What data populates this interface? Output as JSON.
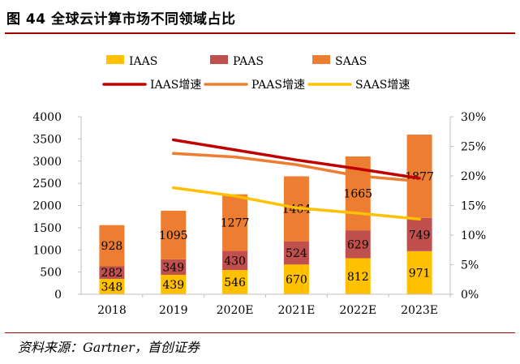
{
  "figure": {
    "title": "图 44 全球云计算市场不同领域占比",
    "source": "资料来源：Gartner，首创证券"
  },
  "chart_data": {
    "type": "bar",
    "stacked": true,
    "categories": [
      "2018",
      "2019",
      "2020E",
      "2021E",
      "2022E",
      "2023E"
    ],
    "series": [
      {
        "name": "IAAS",
        "values": [
          348,
          439,
          546,
          670,
          812,
          971
        ],
        "color": "#ffc000"
      },
      {
        "name": "PAAS",
        "values": [
          282,
          349,
          430,
          524,
          629,
          749
        ],
        "color": "#c0504d"
      },
      {
        "name": "SAAS",
        "values": [
          928,
          1095,
          1277,
          1464,
          1665,
          1877
        ],
        "color": "#ed7d31"
      }
    ],
    "line_series": [
      {
        "name": "IAAS增速",
        "values": [
          null,
          26.1,
          24.4,
          22.7,
          21.2,
          19.6
        ],
        "color": "#c00000"
      },
      {
        "name": "PAAS增速",
        "values": [
          null,
          23.8,
          23.2,
          21.9,
          20.0,
          19.1
        ],
        "color": "#ed7d31"
      },
      {
        "name": "SAAS增速",
        "values": [
          null,
          18.0,
          16.6,
          14.6,
          13.7,
          12.7
        ],
        "color": "#ffc000"
      }
    ],
    "y_left": {
      "min": 0,
      "max": 4000,
      "step": 500,
      "ticks": [
        "0",
        "500",
        "1000",
        "1500",
        "2000",
        "2500",
        "3000",
        "3500",
        "4000"
      ]
    },
    "y_right": {
      "min": 0,
      "max": 30,
      "step": 5,
      "ticks": [
        "0%",
        "5%",
        "10%",
        "15%",
        "20%",
        "25%",
        "30%"
      ]
    },
    "legend_position": "top",
    "grid": false,
    "data_labels": true
  }
}
